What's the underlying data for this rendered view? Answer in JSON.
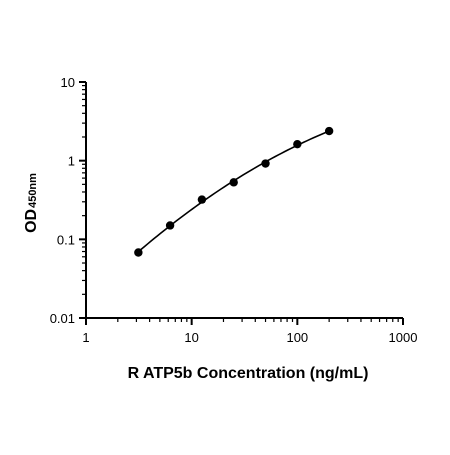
{
  "chart_data": {
    "type": "scatter",
    "title": "",
    "xlabel": "R ATP5b Concentration (ng/mL)",
    "ylabel": {
      "main": "OD",
      "subscript": "450nm"
    },
    "x_scale": "log",
    "y_scale": "log",
    "xlim": [
      1,
      1000
    ],
    "ylim": [
      0.01,
      10
    ],
    "x_ticks": [
      1,
      10,
      100,
      1000
    ],
    "x_tick_labels": [
      "1",
      "10",
      "100",
      "1000"
    ],
    "y_ticks": [
      0.01,
      0.1,
      1,
      10
    ],
    "y_tick_labels": [
      "0.01",
      "0.1",
      "1",
      "10"
    ],
    "grid": false,
    "legend": false,
    "series": [
      {
        "points": [
          {
            "x": 3.13,
            "y": 0.068
          },
          {
            "x": 6.25,
            "y": 0.15
          },
          {
            "x": 12.5,
            "y": 0.32
          },
          {
            "x": 25,
            "y": 0.53
          },
          {
            "x": 50,
            "y": 0.92
          },
          {
            "x": 100,
            "y": 1.62
          },
          {
            "x": 200,
            "y": 2.38
          }
        ],
        "fit_curve": true
      }
    ],
    "colors": {
      "marker": "#000000",
      "line": "#000000",
      "axis": "#000000"
    }
  }
}
